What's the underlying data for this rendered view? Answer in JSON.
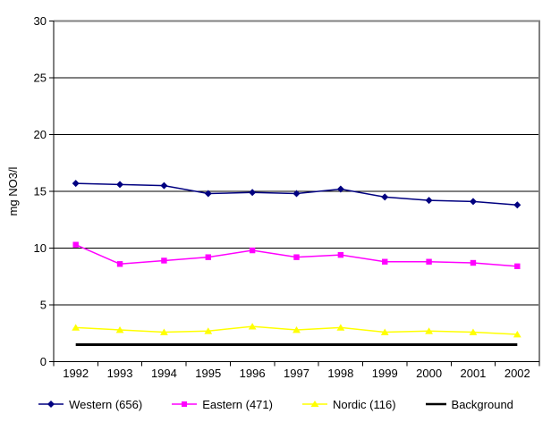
{
  "chart_data": {
    "type": "line",
    "title": "",
    "xlabel": "",
    "ylabel": "mg NO3/l",
    "ylim": [
      0,
      30
    ],
    "ytick_step": 5,
    "grid": "horizontal",
    "legend_position": "bottom",
    "plot_bg": "#FFFFFF",
    "gridline_color": "#000000",
    "axis_color": "#000000",
    "border_color": "#808080",
    "categories": [
      "1992",
      "1993",
      "1994",
      "1995",
      "1996",
      "1997",
      "1998",
      "1999",
      "2000",
      "2001",
      "2002"
    ],
    "series": [
      {
        "name": "Western (656)",
        "color": "#000080",
        "marker": "diamond",
        "line_width": 1.5,
        "values": [
          15.7,
          15.6,
          15.5,
          14.8,
          14.9,
          14.8,
          15.2,
          14.5,
          14.2,
          14.1,
          13.8
        ]
      },
      {
        "name": "Eastern (471)",
        "color": "#FF00FF",
        "marker": "square",
        "line_width": 1.5,
        "values": [
          10.3,
          8.6,
          8.9,
          9.2,
          9.8,
          9.2,
          9.4,
          8.8,
          8.8,
          8.7,
          8.4
        ]
      },
      {
        "name": "Nordic (116)",
        "color": "#FFFF00",
        "marker": "triangle",
        "line_width": 1.5,
        "values": [
          3.0,
          2.8,
          2.6,
          2.7,
          3.1,
          2.8,
          3.0,
          2.6,
          2.7,
          2.6,
          2.4
        ]
      },
      {
        "name": "Background",
        "color": "#000000",
        "marker": "none",
        "line_width": 3,
        "values": [
          1.5,
          1.5,
          1.5,
          1.5,
          1.5,
          1.5,
          1.5,
          1.5,
          1.5,
          1.5,
          1.5
        ]
      }
    ]
  }
}
